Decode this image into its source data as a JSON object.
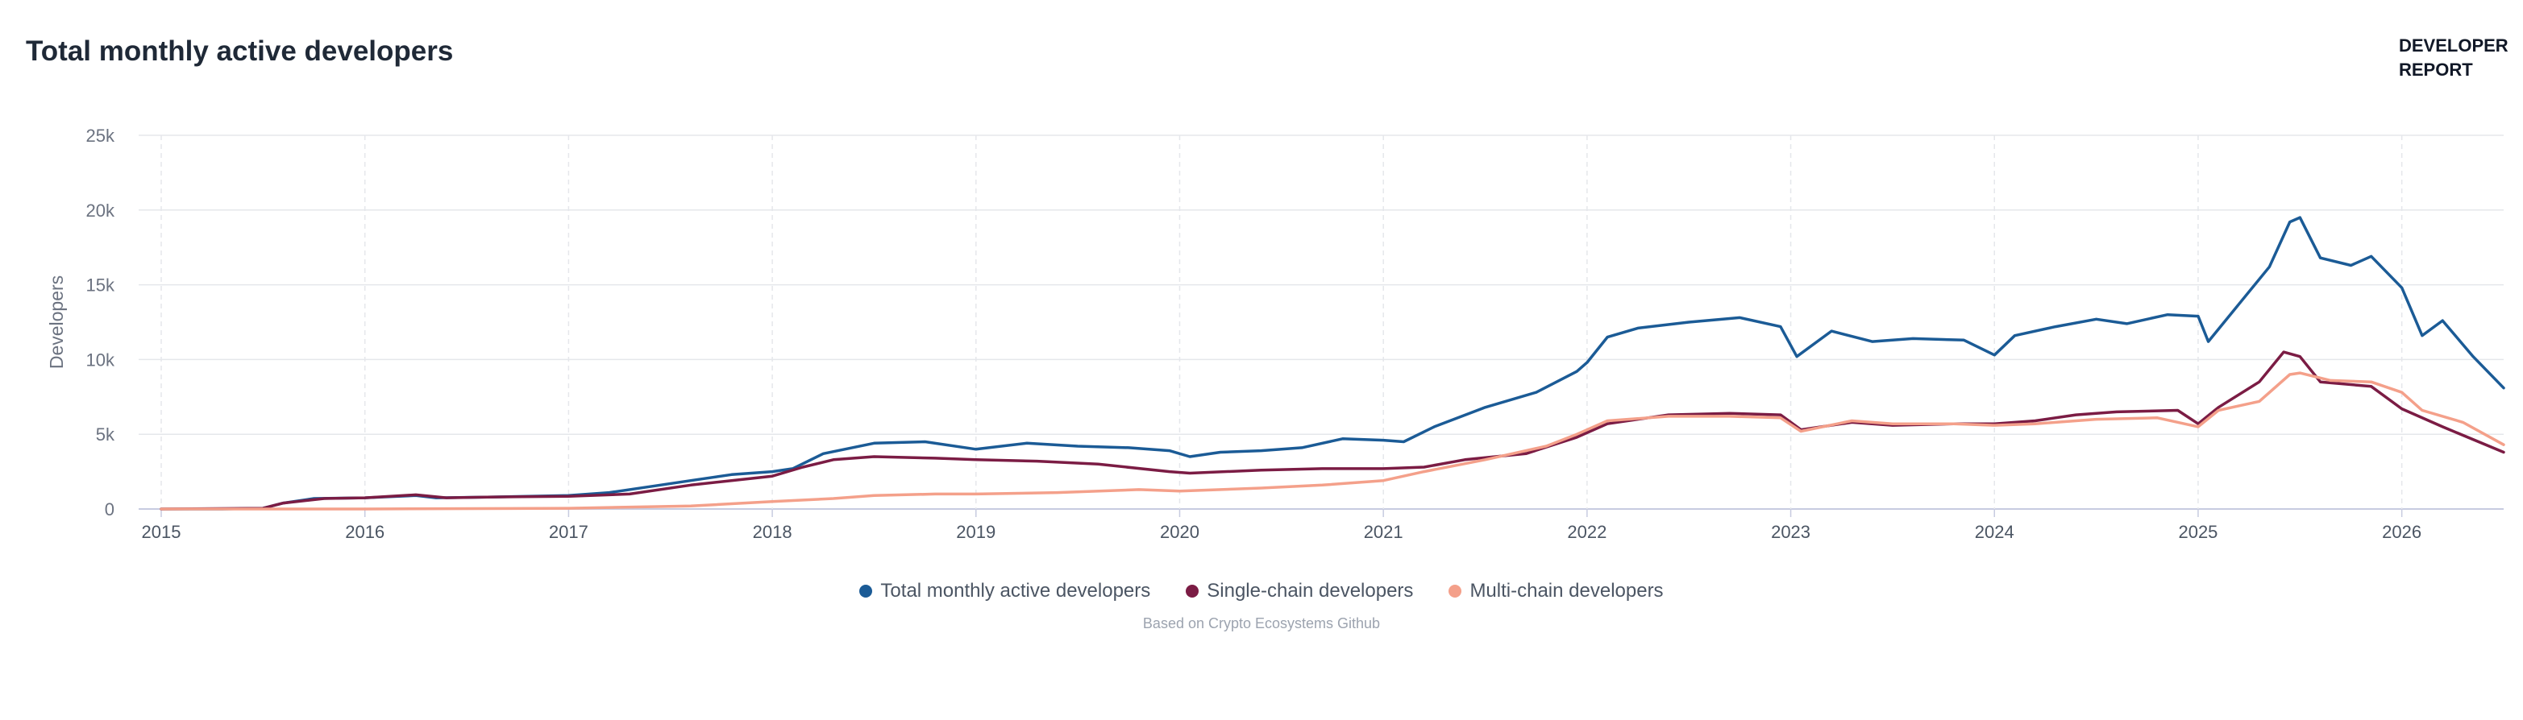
{
  "header": {
    "brand_line1": "DEVELOPER",
    "brand_line2": "REPORT"
  },
  "footer": {
    "source": "Based on Crypto Ecosystems Github"
  },
  "chart_data": {
    "type": "line",
    "title": "Total monthly active developers",
    "ylabel": "Developers",
    "xlabel": "",
    "ylim": [
      0,
      25000
    ],
    "xlim": [
      2015.0,
      2026.5
    ],
    "yticks": [
      0,
      5000,
      10000,
      15000,
      20000,
      25000
    ],
    "ytick_labels": [
      "0",
      "5k",
      "10k",
      "15k",
      "20k",
      "25k"
    ],
    "xticks": [
      2015,
      2016,
      2017,
      2018,
      2019,
      2020,
      2021,
      2022,
      2023,
      2024,
      2025,
      2026
    ],
    "xtick_labels": [
      "2015",
      "2016",
      "2017",
      "2018",
      "2019",
      "2020",
      "2021",
      "2022",
      "2023",
      "2024",
      "2025",
      "2026"
    ],
    "grid": true,
    "legend_position": "bottom-center",
    "series": [
      {
        "name": "Total monthly active developers",
        "color": "#1b5b96",
        "x": [
          2015.0,
          2015.3,
          2015.5,
          2015.6,
          2015.75,
          2016.0,
          2016.25,
          2016.35,
          2016.6,
          2016.8,
          2017.0,
          2017.2,
          2017.4,
          2017.6,
          2017.8,
          2018.0,
          2018.1,
          2018.25,
          2018.5,
          2018.75,
          2019.0,
          2019.25,
          2019.5,
          2019.75,
          2019.95,
          2020.05,
          2020.2,
          2020.4,
          2020.6,
          2020.8,
          2021.0,
          2021.1,
          2021.25,
          2021.5,
          2021.75,
          2021.95,
          2022.0,
          2022.1,
          2022.25,
          2022.5,
          2022.75,
          2022.95,
          2023.03,
          2023.2,
          2023.4,
          2023.6,
          2023.85,
          2024.0,
          2024.1,
          2024.3,
          2024.5,
          2024.65,
          2024.85,
          2025.0,
          2025.05,
          2025.2,
          2025.35,
          2025.45,
          2025.5,
          2025.6,
          2025.75,
          2025.85,
          2026.0,
          2026.1,
          2026.2,
          2026.35,
          2026.5
        ],
        "values": [
          0,
          0,
          50,
          400,
          700,
          750,
          900,
          750,
          800,
          850,
          900,
          1100,
          1500,
          1900,
          2300,
          2500,
          2700,
          3700,
          4400,
          4500,
          4000,
          4400,
          4200,
          4100,
          3900,
          3500,
          3800,
          3900,
          4100,
          4700,
          4600,
          4500,
          5500,
          6800,
          7800,
          9200,
          9800,
          11500,
          12100,
          12500,
          12800,
          12200,
          10200,
          11900,
          11200,
          11400,
          11300,
          10300,
          11600,
          12200,
          12700,
          12400,
          13000,
          12900,
          11200,
          13700,
          16200,
          19200,
          19500,
          16800,
          16300,
          16900,
          14800,
          11600,
          12600,
          10200,
          8100
        ]
      },
      {
        "name": "Single-chain developers",
        "color": "#7b1c44",
        "x": [
          2015.0,
          2015.5,
          2015.6,
          2015.8,
          2016.0,
          2016.25,
          2016.4,
          2016.6,
          2017.0,
          2017.3,
          2017.6,
          2017.8,
          2018.0,
          2018.15,
          2018.3,
          2018.5,
          2018.8,
          2019.0,
          2019.3,
          2019.6,
          2019.95,
          2020.05,
          2020.4,
          2020.7,
          2021.0,
          2021.2,
          2021.4,
          2021.7,
          2021.95,
          2022.1,
          2022.4,
          2022.7,
          2022.95,
          2023.05,
          2023.3,
          2023.5,
          2023.8,
          2024.0,
          2024.2,
          2024.4,
          2024.6,
          2024.9,
          2025.0,
          2025.1,
          2025.3,
          2025.42,
          2025.5,
          2025.6,
          2025.85,
          2026.0,
          2026.2,
          2026.5
        ],
        "values": [
          0,
          50,
          400,
          700,
          750,
          950,
          750,
          800,
          850,
          1000,
          1600,
          1900,
          2200,
          2800,
          3300,
          3500,
          3400,
          3300,
          3200,
          3000,
          2500,
          2400,
          2600,
          2700,
          2700,
          2800,
          3300,
          3700,
          4800,
          5700,
          6300,
          6400,
          6300,
          5300,
          5800,
          5600,
          5700,
          5700,
          5900,
          6300,
          6500,
          6600,
          5700,
          6800,
          8500,
          10500,
          10200,
          8500,
          8200,
          6700,
          5500,
          3800
        ]
      },
      {
        "name": "Multi-chain developers",
        "color": "#f4a08a",
        "x": [
          2015.0,
          2016.0,
          2017.0,
          2017.6,
          2018.0,
          2018.3,
          2018.5,
          2018.8,
          2019.0,
          2019.4,
          2019.8,
          2020.0,
          2020.4,
          2020.7,
          2021.0,
          2021.2,
          2021.5,
          2021.8,
          2021.95,
          2022.1,
          2022.4,
          2022.7,
          2022.95,
          2023.05,
          2023.3,
          2023.5,
          2023.8,
          2024.0,
          2024.2,
          2024.5,
          2024.8,
          2025.0,
          2025.1,
          2025.3,
          2025.45,
          2025.5,
          2025.65,
          2025.85,
          2026.0,
          2026.1,
          2026.3,
          2026.5
        ],
        "values": [
          0,
          0,
          50,
          200,
          500,
          700,
          900,
          1000,
          1000,
          1100,
          1300,
          1200,
          1400,
          1600,
          1900,
          2500,
          3300,
          4200,
          5000,
          5900,
          6200,
          6200,
          6100,
          5200,
          5900,
          5700,
          5700,
          5600,
          5700,
          6000,
          6100,
          5500,
          6600,
          7200,
          9000,
          9100,
          8600,
          8500,
          7800,
          6600,
          5800,
          4300
        ]
      }
    ]
  }
}
